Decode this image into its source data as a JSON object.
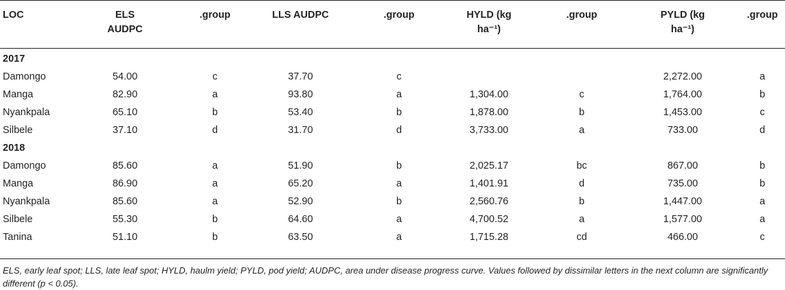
{
  "headers": {
    "loc": "LOC",
    "els_line1": "ELS",
    "els_line2": "AUDPC",
    "group1": ".group",
    "lls": "LLS AUDPC",
    "group2": ".group",
    "hyld_line1": "HYLD (kg",
    "hyld_line2": "ha⁻¹)",
    "group3": ".group",
    "pyld_line1": "PYLD (kg",
    "pyld_line2": "ha⁻¹)",
    "group4": ".group"
  },
  "sections": [
    {
      "year": "2017",
      "rows": [
        {
          "loc": "Damongo",
          "els": "54.00",
          "g1": "c",
          "lls": "37.70",
          "g2": "c",
          "hyld": "",
          "g3": "",
          "pyld": "2,272.00",
          "g4": "a"
        },
        {
          "loc": "Manga",
          "els": "82.90",
          "g1": "a",
          "lls": "93.80",
          "g2": "a",
          "hyld": "1,304.00",
          "g3": "c",
          "pyld": "1,764.00",
          "g4": "b"
        },
        {
          "loc": "Nyankpala",
          "els": "65.10",
          "g1": "b",
          "lls": "53.40",
          "g2": "b",
          "hyld": "1,878.00",
          "g3": "b",
          "pyld": "1,453.00",
          "g4": "c"
        },
        {
          "loc": "Silbele",
          "els": "37.10",
          "g1": "d",
          "lls": "31.70",
          "g2": "d",
          "hyld": "3,733.00",
          "g3": "a",
          "pyld": "733.00",
          "g4": "d"
        }
      ]
    },
    {
      "year": "2018",
      "rows": [
        {
          "loc": "Damongo",
          "els": "85.60",
          "g1": "a",
          "lls": "51.90",
          "g2": "b",
          "hyld": "2,025.17",
          "g3": "bc",
          "pyld": "867.00",
          "g4": "b"
        },
        {
          "loc": "Manga",
          "els": "86.90",
          "g1": "a",
          "lls": "65.20",
          "g2": "a",
          "hyld": "1,401.91",
          "g3": "d",
          "pyld": "735.00",
          "g4": "b"
        },
        {
          "loc": "Nyankpala",
          "els": "85.60",
          "g1": "a",
          "lls": "52.90",
          "g2": "b",
          "hyld": "2,560.76",
          "g3": "b",
          "pyld": "1,447.00",
          "g4": "a"
        },
        {
          "loc": "Silbele",
          "els": "55.30",
          "g1": "b",
          "lls": "64.60",
          "g2": "a",
          "hyld": "4,700.52",
          "g3": "a",
          "pyld": "1,577.00",
          "g4": "a"
        },
        {
          "loc": "Tanina",
          "els": "51.10",
          "g1": "b",
          "lls": "63.50",
          "g2": "a",
          "hyld": "1,715.28",
          "g3": "cd",
          "pyld": "466.00",
          "g4": "c"
        }
      ]
    }
  ],
  "footnote": "ELS, early leaf spot; LLS, late leaf spot; HYLD, haulm yield; PYLD, pod yield; AUDPC, area under disease progress curve. Values followed by dissimilar letters in the next column are significantly different (p < 0.05)."
}
